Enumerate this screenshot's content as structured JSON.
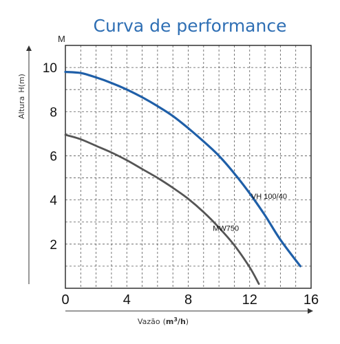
{
  "chart_data": {
    "type": "line",
    "title": "Curva de performance",
    "ylabel_prefix": "Altura",
    "ylabel_unit": "H(m)",
    "y_unit_top": "M",
    "xlabel_prefix": "Vazão",
    "xlabel_unit_base": "m",
    "xlabel_unit_sup": "3",
    "xlabel_unit_tail": "/h",
    "xlim": [
      0,
      16
    ],
    "ylim": [
      0,
      11
    ],
    "x_ticks": [
      0,
      4,
      8,
      12,
      16
    ],
    "y_ticks": [
      2,
      4,
      6,
      8,
      10
    ],
    "x_tick_labels": [
      "0",
      "4",
      "8",
      "12",
      "16"
    ],
    "y_tick_labels": [
      "2",
      "4",
      "6",
      "8",
      "10"
    ],
    "grid": true,
    "series": [
      {
        "name": "VH 100/40",
        "color": "#1f5fa8",
        "x": [
          0,
          1,
          2,
          3,
          4,
          5,
          6,
          7,
          8,
          9,
          10,
          11,
          12,
          13,
          14,
          15.3
        ],
        "y": [
          9.8,
          9.75,
          9.55,
          9.3,
          9.0,
          8.65,
          8.25,
          7.8,
          7.25,
          6.65,
          6.0,
          5.2,
          4.3,
          3.3,
          2.2,
          1.0
        ]
      },
      {
        "name": "MW750",
        "color": "#555555",
        "x": [
          0,
          1,
          2,
          3,
          4,
          5,
          6,
          7,
          8,
          9,
          10,
          11,
          12,
          12.6
        ],
        "y": [
          6.95,
          6.75,
          6.45,
          6.15,
          5.8,
          5.4,
          5.0,
          4.55,
          4.05,
          3.45,
          2.75,
          1.95,
          0.95,
          0.2
        ]
      }
    ]
  }
}
